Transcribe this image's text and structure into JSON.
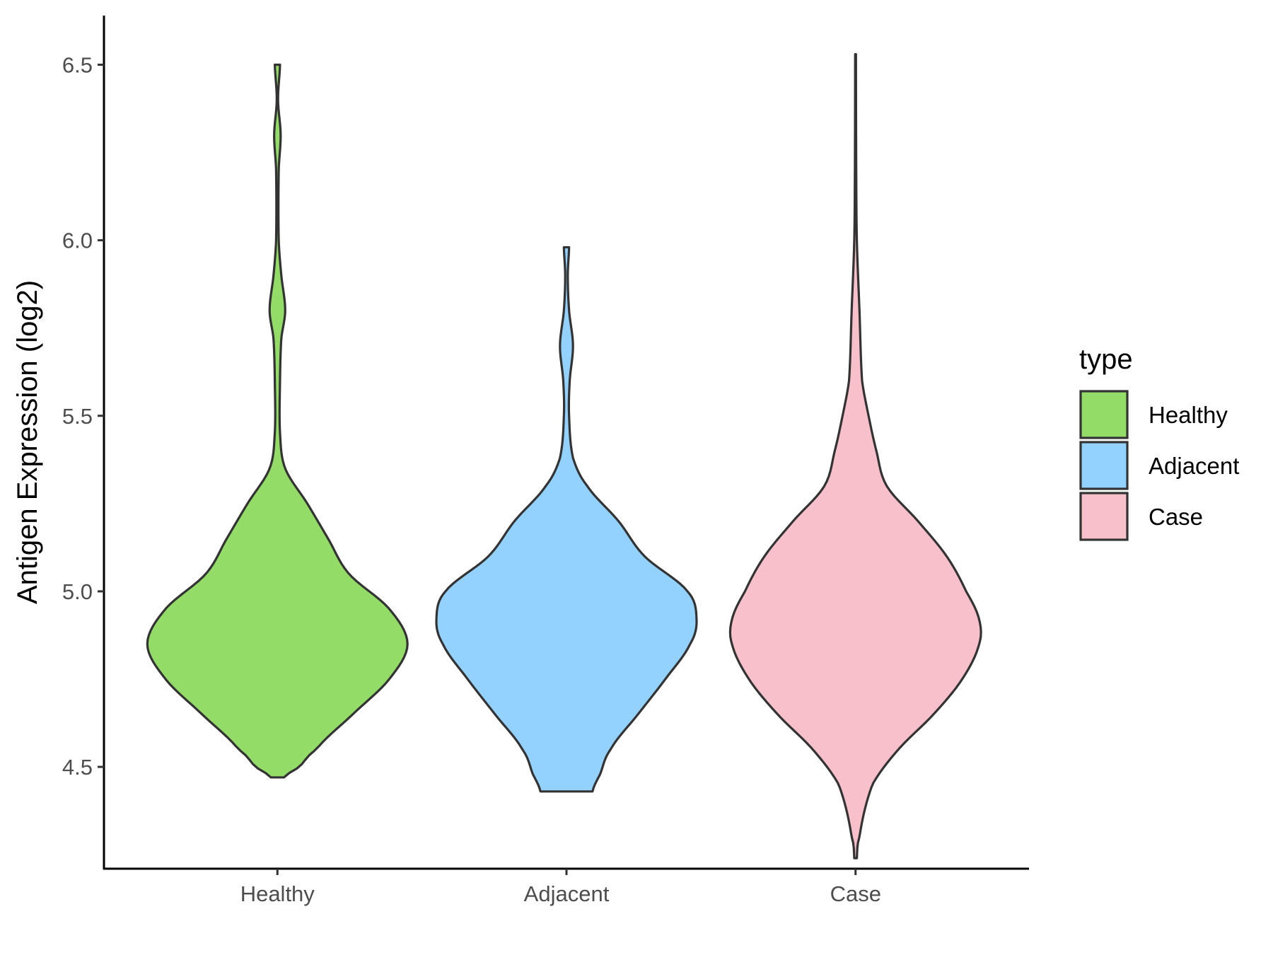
{
  "chart_data": {
    "type": "violin",
    "ylabel": "Antigen Expression (log2)",
    "xlabel": "",
    "categories": [
      "Healthy",
      "Adjacent",
      "Case"
    ],
    "ylim": [
      4.21,
      6.64
    ],
    "yticks": [
      4.5,
      5.0,
      5.5,
      6.0,
      6.5
    ],
    "ytick_labels": [
      "4.5",
      "5.0",
      "5.5",
      "6.0",
      "6.5"
    ],
    "grid": false,
    "legend": {
      "title": "type",
      "position": "right",
      "entries": [
        "Healthy",
        "Adjacent",
        "Case"
      ]
    },
    "colors": {
      "Healthy": "#93dc68",
      "Adjacent": "#93d2fe",
      "Case": "#f7c0cb",
      "outline": "#333333"
    },
    "series": [
      {
        "name": "Healthy",
        "profile": [
          [
            4.47,
            0.05
          ],
          [
            4.5,
            0.17
          ],
          [
            4.55,
            0.3
          ],
          [
            4.65,
            0.58
          ],
          [
            4.75,
            0.86
          ],
          [
            4.85,
            1.0
          ],
          [
            4.95,
            0.86
          ],
          [
            5.05,
            0.55
          ],
          [
            5.15,
            0.39
          ],
          [
            5.25,
            0.23
          ],
          [
            5.35,
            0.06
          ],
          [
            5.45,
            0.02
          ],
          [
            5.6,
            0.02
          ],
          [
            5.72,
            0.03
          ],
          [
            5.8,
            0.06
          ],
          [
            5.9,
            0.03
          ],
          [
            6.0,
            0.01
          ],
          [
            6.2,
            0.01
          ],
          [
            6.3,
            0.025
          ],
          [
            6.4,
            0.005
          ],
          [
            6.5,
            0.02
          ]
        ]
      },
      {
        "name": "Adjacent",
        "profile": [
          [
            4.43,
            0.2
          ],
          [
            4.48,
            0.26
          ],
          [
            4.55,
            0.34
          ],
          [
            4.65,
            0.55
          ],
          [
            4.75,
            0.76
          ],
          [
            4.85,
            0.95
          ],
          [
            4.92,
            1.0
          ],
          [
            5.0,
            0.93
          ],
          [
            5.1,
            0.6
          ],
          [
            5.2,
            0.4
          ],
          [
            5.3,
            0.16
          ],
          [
            5.38,
            0.05
          ],
          [
            5.5,
            0.02
          ],
          [
            5.6,
            0.025
          ],
          [
            5.7,
            0.05
          ],
          [
            5.8,
            0.02
          ],
          [
            5.9,
            0.01
          ],
          [
            5.98,
            0.02
          ]
        ]
      },
      {
        "name": "Case",
        "profile": [
          [
            4.24,
            0.01
          ],
          [
            4.3,
            0.03
          ],
          [
            4.45,
            0.13
          ],
          [
            4.55,
            0.33
          ],
          [
            4.65,
            0.6
          ],
          [
            4.75,
            0.82
          ],
          [
            4.85,
            0.95
          ],
          [
            4.92,
            0.95
          ],
          [
            5.0,
            0.85
          ],
          [
            5.1,
            0.7
          ],
          [
            5.2,
            0.48
          ],
          [
            5.3,
            0.24
          ],
          [
            5.4,
            0.16
          ],
          [
            5.5,
            0.1
          ],
          [
            5.6,
            0.05
          ],
          [
            5.8,
            0.03
          ],
          [
            6.0,
            0.01
          ],
          [
            6.2,
            0.005
          ],
          [
            6.53,
            0.003
          ]
        ]
      }
    ]
  }
}
